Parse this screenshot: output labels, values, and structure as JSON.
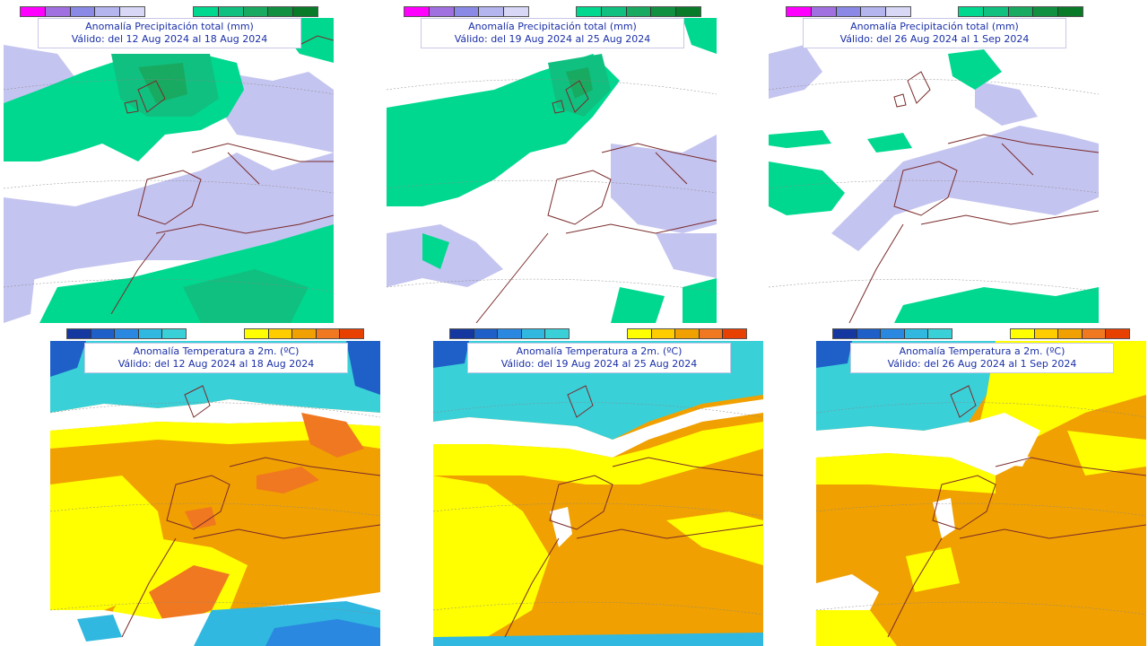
{
  "panels": [
    {
      "id": "precip-1",
      "title": "Anomalía Precipitación total (mm)",
      "valid": "Válido: del 12 Aug 2024 al 18 Aug 2024"
    },
    {
      "id": "precip-2",
      "title": "Anomalía Precipitación total (mm)",
      "valid": "Válido: del 19 Aug 2024 al 25 Aug 2024"
    },
    {
      "id": "precip-3",
      "title": "Anomalía Precipitación total (mm)",
      "valid": "Válido: del 26 Aug 2024 al 1 Sep 2024"
    },
    {
      "id": "temp-1",
      "title": "Anomalía Temperatura a 2m. (ºC)",
      "valid": "Válido: del 12 Aug 2024 al 18 Aug 2024"
    },
    {
      "id": "temp-2",
      "title": "Anomalía Temperatura a 2m. (ºC)",
      "valid": "Válido: del 19 Aug 2024 al 25 Aug 2024"
    },
    {
      "id": "temp-3",
      "title": "Anomalía Temperatura a 2m. (ºC)",
      "valid": "Válido: del 26 Aug 2024 al 1 Sep 2024"
    }
  ],
  "colors": {
    "precip_dry": [
      "#ff00ff",
      "#a070e0",
      "#8a8ae6",
      "#b4b4ee",
      "#d8d8f6"
    ],
    "precip_wet": [
      "#00d890",
      "#10c080",
      "#18aa60",
      "#109040",
      "#087a28"
    ],
    "temp_cold": [
      "#1438a0",
      "#1f60c8",
      "#2a88e0",
      "#30b8e0",
      "#3ad0d8"
    ],
    "temp_warm": [
      "#ffff00",
      "#ffcc00",
      "#f0a000",
      "#f07820",
      "#e84000"
    ],
    "coast": "#7a2b2b",
    "title_text": "#1a2fa8"
  }
}
